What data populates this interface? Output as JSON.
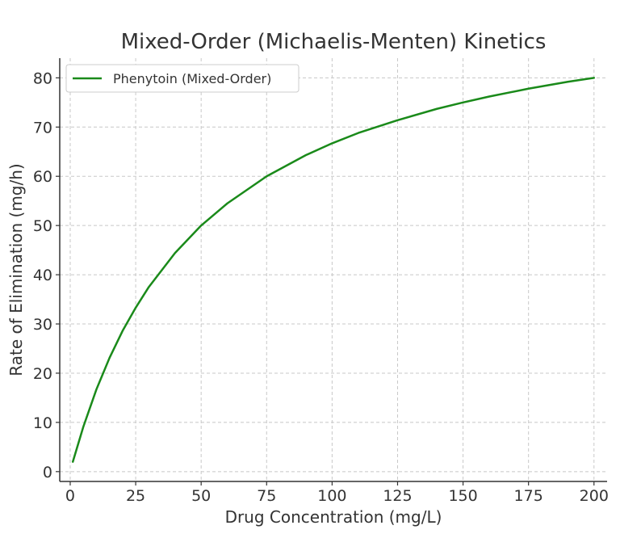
{
  "chart_data": {
    "type": "line",
    "title": "Mixed-Order (Michaelis-Menten) Kinetics",
    "xlabel": "Drug Concentration (mg/L)",
    "ylabel": "Rate of Elimination (mg/h)",
    "xlim": [
      -4,
      205
    ],
    "ylim": [
      -2,
      84
    ],
    "xticks": [
      0,
      25,
      50,
      75,
      100,
      125,
      150,
      175,
      200
    ],
    "yticks": [
      0,
      10,
      20,
      30,
      40,
      50,
      60,
      70,
      80
    ],
    "grid": true,
    "legend_position": "top-left",
    "series": [
      {
        "name": "Phenytoin (Mixed-Order)",
        "color": "#1a8a1a",
        "x": [
          1,
          5,
          10,
          15,
          20,
          25,
          30,
          40,
          50,
          60,
          75,
          90,
          100,
          110,
          125,
          140,
          150,
          160,
          175,
          190,
          200
        ],
        "y": [
          2.0,
          9.1,
          16.7,
          23.1,
          28.6,
          33.3,
          37.5,
          44.4,
          50.0,
          54.5,
          60.0,
          64.3,
          66.7,
          68.8,
          71.4,
          73.7,
          75.0,
          76.2,
          77.8,
          79.2,
          80.0
        ]
      }
    ]
  }
}
